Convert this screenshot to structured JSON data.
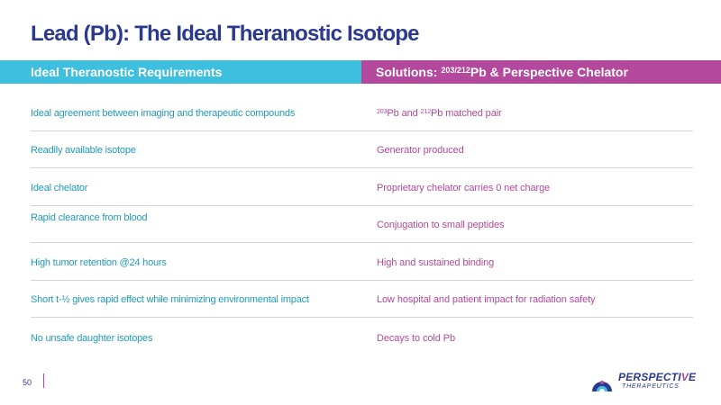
{
  "slide": {
    "title": "Lead (Pb): The Ideal Theranostic Isotope",
    "page_number": "50"
  },
  "header": {
    "left": "Ideal Theranostic Requirements",
    "right_prefix": "Solutions: ",
    "right_sup": "203/212",
    "right_suffix": "Pb & Perspective Chelator"
  },
  "rows": [
    {
      "requirement": "Ideal agreement between imaging and therapeutic compounds",
      "solution_sup1": "203",
      "solution_part1": "Pb and ",
      "solution_sup2": "212",
      "solution_part2": "Pb matched pair"
    },
    {
      "requirement": "Readily available isotope",
      "solution": "Generator produced"
    },
    {
      "requirement": "Ideal chelator",
      "solution": "Proprietary chelator carries 0 net charge"
    },
    {
      "requirement": "Rapid clearance from blood",
      "solution": "Conjugation to small peptides"
    },
    {
      "requirement": "High tumor retention @24 hours",
      "solution": "High and sustained binding"
    },
    {
      "requirement": "Short t-½ gives rapid effect while minimizing environmental impact",
      "solution": "Low hospital and patient impact for radiation safety"
    },
    {
      "requirement": "No unsafe daughter isotopes",
      "solution": "Decays to cold Pb"
    }
  ],
  "logo": {
    "name_main": "PERSPECTI",
    "name_accent": "V",
    "name_end": "E",
    "subtitle": "THERAPEUTICS",
    "colors": {
      "navy": "#2b3a8f",
      "magenta": "#b4489c",
      "cyan": "#3fbfde"
    }
  }
}
